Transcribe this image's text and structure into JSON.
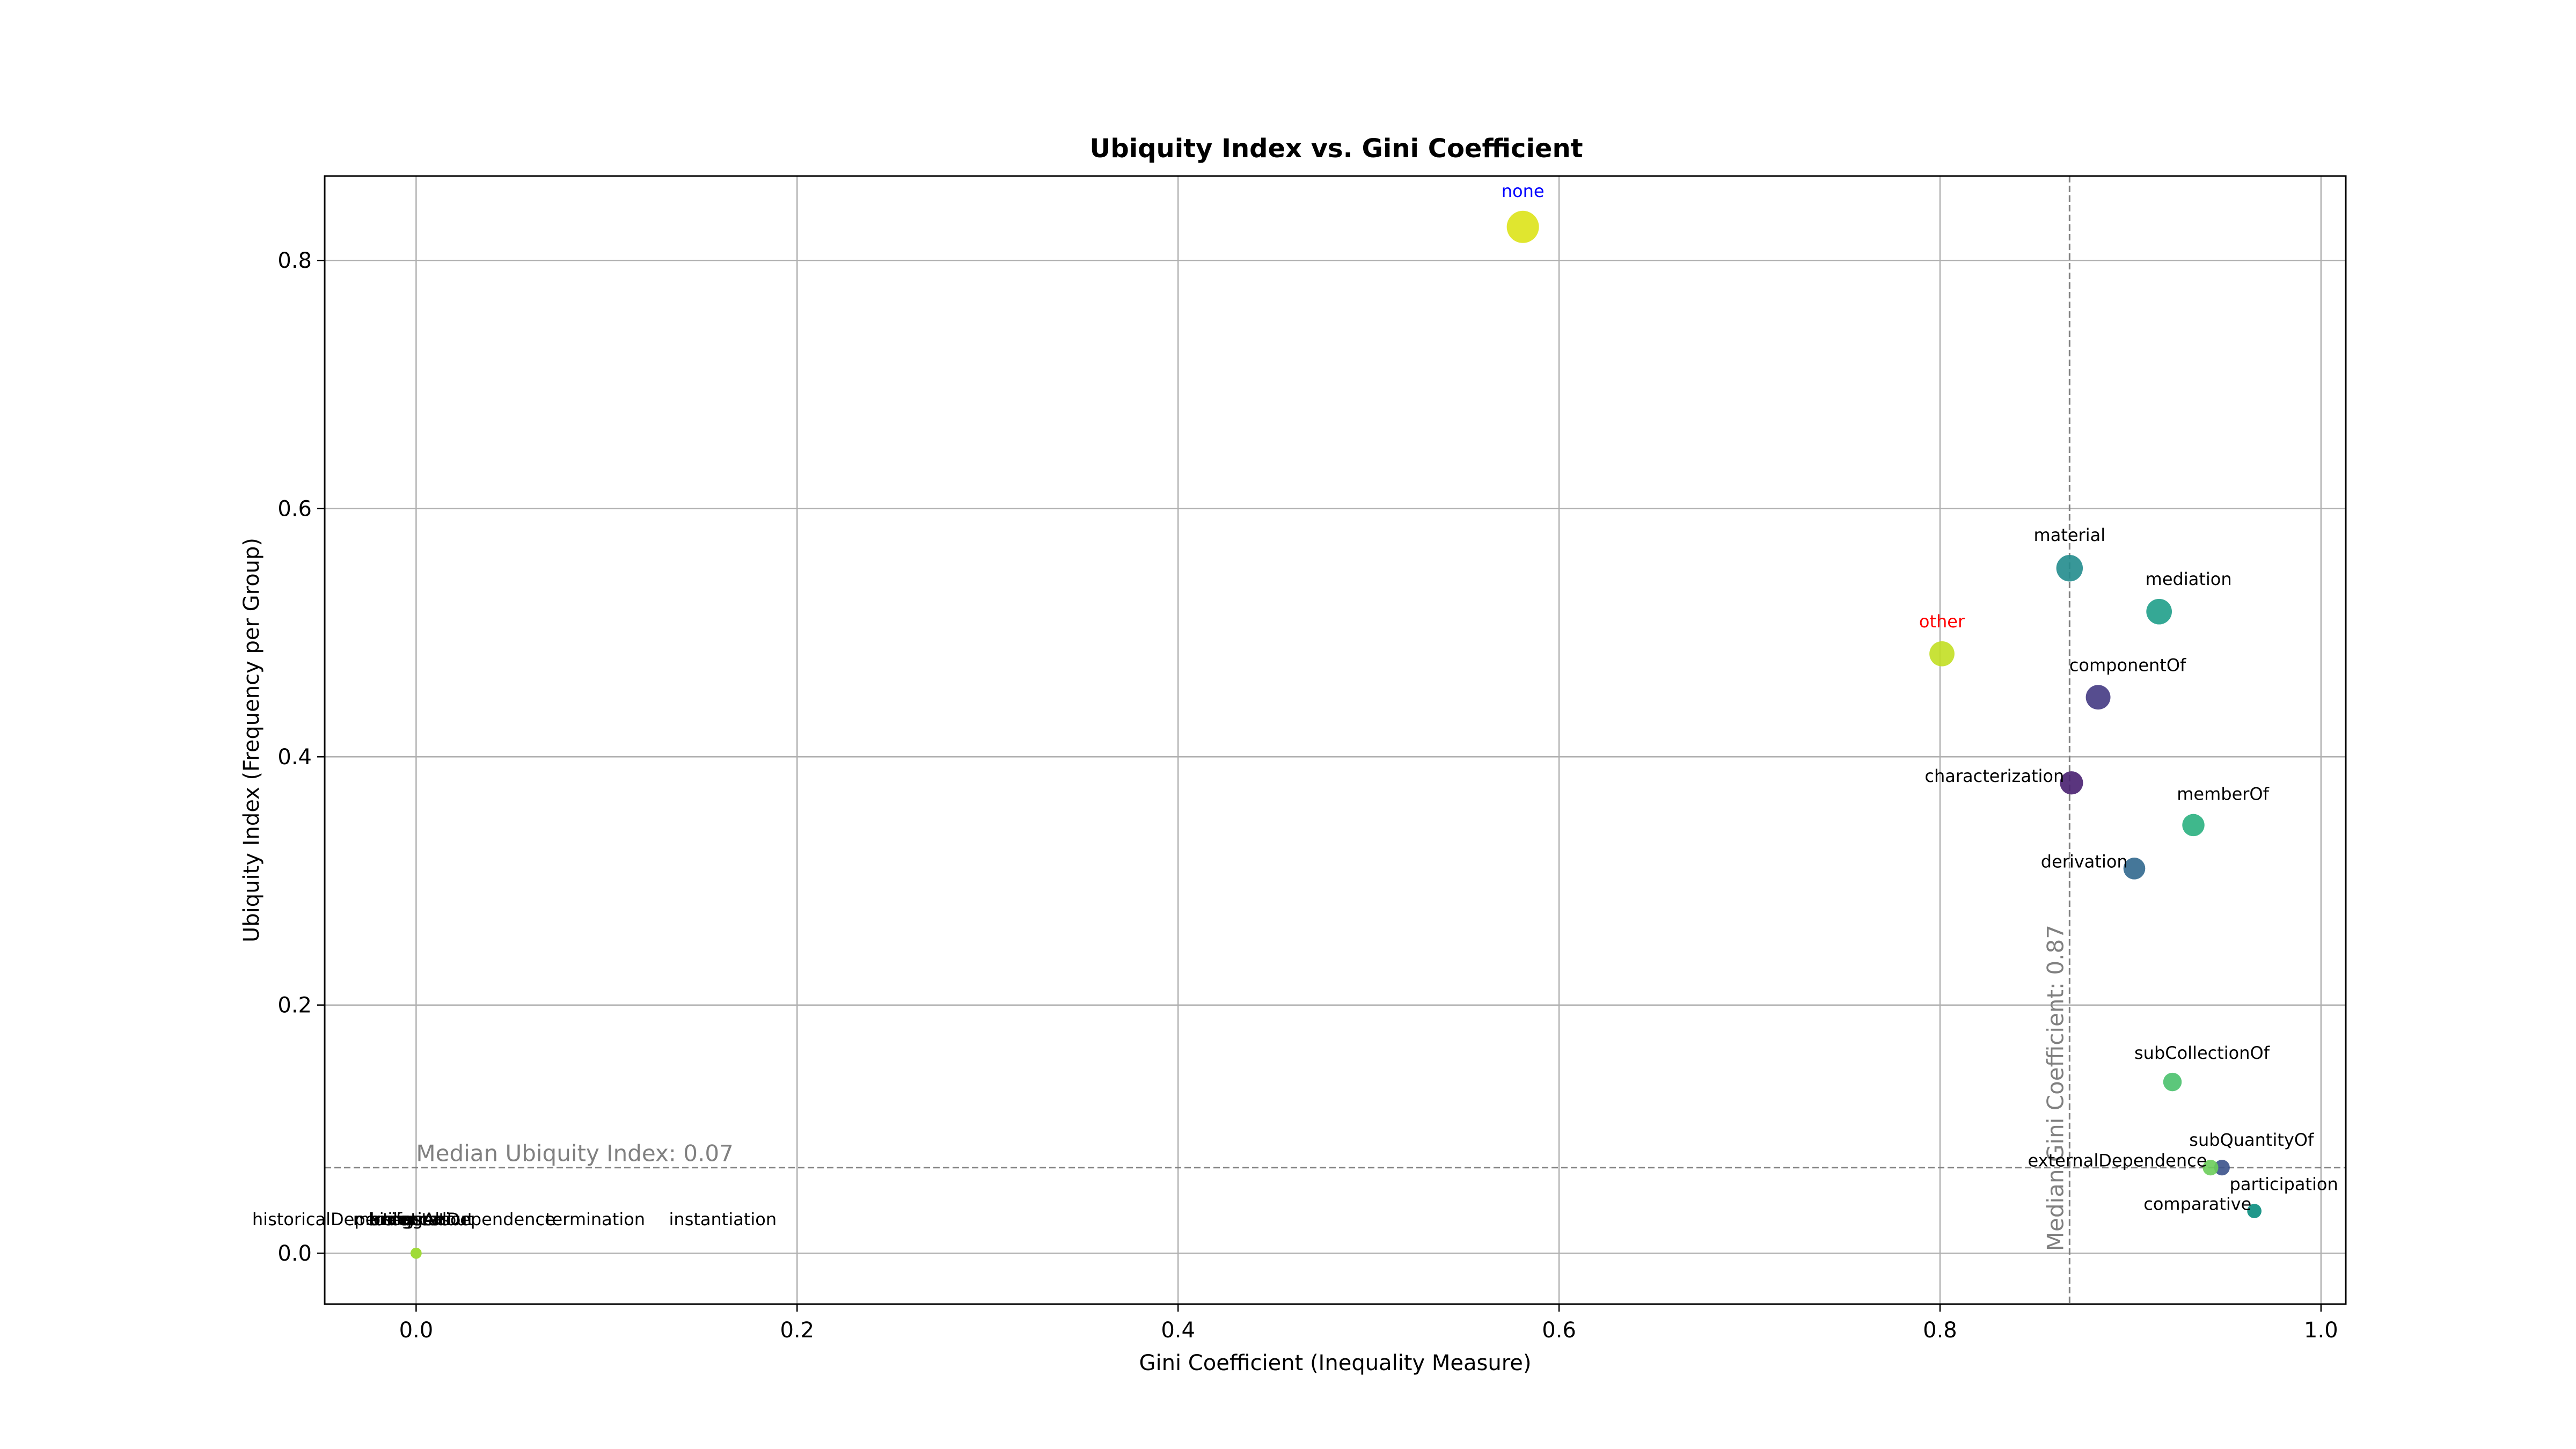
{
  "chart_data": {
    "type": "scatter",
    "title": "Ubiquity Index vs. Gini Coefficient",
    "xlabel": "Gini Coefficient (Inequality Measure)",
    "ylabel": "Ubiquity Index (Frequency per Group)",
    "xlim": [
      -0.048,
      1.013
    ],
    "ylim": [
      -0.041,
      0.868
    ],
    "xticks": [
      0.0,
      0.2,
      0.4,
      0.6,
      0.8,
      1.0
    ],
    "xtick_labels": [
      "0.0",
      "0.2",
      "0.4",
      "0.6",
      "0.8",
      "1.0"
    ],
    "yticks": [
      0.0,
      0.2,
      0.4,
      0.6,
      0.8
    ],
    "ytick_labels": [
      "0.0",
      "0.2",
      "0.4",
      "0.6",
      "0.8"
    ],
    "grid": true,
    "legend": "none",
    "median_lines": {
      "x": {
        "value": 0.868,
        "label": "Median Gini Coefficient: 0.87"
      },
      "y": {
        "value": 0.069,
        "label": "Median Ubiquity Index: 0.07"
      }
    },
    "colors": {
      "grid": "#b0b0b0",
      "median_line": "#808080",
      "median_text": "#808080",
      "highlight_none": "#0000ff",
      "highlight_other": "#ff0000",
      "label_default": "#000000"
    },
    "points": [
      {
        "label": "none",
        "x": 0.581,
        "y": 0.827,
        "size": 1.0,
        "color": "#dde318",
        "label_color": "#0000ff",
        "label_pos": "above"
      },
      {
        "label": "material",
        "x": 0.868,
        "y": 0.552,
        "size": 0.76,
        "color": "#228c8d",
        "label_color": "#000000",
        "label_pos": "above"
      },
      {
        "label": "mediation",
        "x": 0.915,
        "y": 0.517,
        "size": 0.72,
        "color": "#1f9e89",
        "label_color": "#000000",
        "label_pos": "above-right"
      },
      {
        "label": "other",
        "x": 0.801,
        "y": 0.483,
        "size": 0.7,
        "color": "#c2df23",
        "label_color": "#ff0000",
        "label_pos": "above"
      },
      {
        "label": "componentOf",
        "x": 0.883,
        "y": 0.448,
        "size": 0.68,
        "color": "#443a83",
        "label_color": "#000000",
        "label_pos": "above-right"
      },
      {
        "label": "characterization",
        "x": 0.869,
        "y": 0.379,
        "size": 0.62,
        "color": "#481f70",
        "label_color": "#000000",
        "label_pos": "left"
      },
      {
        "label": "memberOf",
        "x": 0.933,
        "y": 0.345,
        "size": 0.58,
        "color": "#2ab07f",
        "label_color": "#000000",
        "label_pos": "above-right"
      },
      {
        "label": "derivation",
        "x": 0.902,
        "y": 0.31,
        "size": 0.56,
        "color": "#31688e",
        "label_color": "#000000",
        "label_pos": "left"
      },
      {
        "label": "subCollectionOf",
        "x": 0.922,
        "y": 0.138,
        "size": 0.42,
        "color": "#4ac16d",
        "label_color": "#000000",
        "label_pos": "above-right"
      },
      {
        "label": "subQuantityOf",
        "x": 0.948,
        "y": 0.069,
        "size": 0.3,
        "color": "#3b528b",
        "label_color": "#000000",
        "label_pos": "above-right"
      },
      {
        "label": "externalDependence",
        "x": 0.942,
        "y": 0.069,
        "size": 0.3,
        "color": "#6ccd5a",
        "label_color": "#000000",
        "label_pos": "left"
      },
      {
        "label": "participation",
        "x": 0.965,
        "y": 0.034,
        "size": 0.24,
        "color": "#20a386",
        "label_color": "#000000",
        "label_pos": "above-right"
      },
      {
        "label": "comparative",
        "x": 0.965,
        "y": 0.034,
        "size": 0.24,
        "color": "#1f968b",
        "label_color": "#000000",
        "label_pos": "left"
      },
      {
        "label": "historicalDependence",
        "x": 0.0,
        "y": 0.0,
        "size": 0.1,
        "color": "#a0da39",
        "label_color": "#000000",
        "label_pos": "above-offset",
        "label_dx": -0.037
      },
      {
        "label": "instantiation",
        "x": 0.0,
        "y": 0.0,
        "size": 0.1,
        "color": "#a0da39",
        "label_color": "#000000",
        "label_pos": "above-offset",
        "label_dx": 0.161
      },
      {
        "label": "termination",
        "x": 0.0,
        "y": 0.0,
        "size": 0.1,
        "color": "#a0da39",
        "label_color": "#000000",
        "label_pos": "above-offset",
        "label_dx": 0.094
      },
      {
        "label": "manifestation",
        "x": 0.0,
        "y": 0.0,
        "size": 0.1,
        "color": "#a0da39",
        "label_color": "#000000",
        "label_pos": "above-offset",
        "label_dx": -0.002
      },
      {
        "label": "creation",
        "x": 0.0,
        "y": 0.0,
        "size": 0.1,
        "color": "#a0da39",
        "label_color": "#000000",
        "label_pos": "above-offset",
        "label_dx": -0.004
      },
      {
        "label": "bringsAbout",
        "x": 0.0,
        "y": 0.0,
        "size": 0.1,
        "color": "#a0da39",
        "label_color": "#000000",
        "label_pos": "above-offset",
        "label_dx": 0.003
      },
      {
        "label": "triggers",
        "x": 0.0,
        "y": 0.0,
        "size": 0.1,
        "color": "#a0da39",
        "label_color": "#000000",
        "label_pos": "above-offset",
        "label_dx": 0.0
      },
      {
        "label": "historicalDependence",
        "x": 0.0,
        "y": 0.0,
        "size": 0.1,
        "color": "#a0da39",
        "label_color": "#000000",
        "label_pos": "above-offset",
        "label_dx": 0.024
      }
    ]
  }
}
